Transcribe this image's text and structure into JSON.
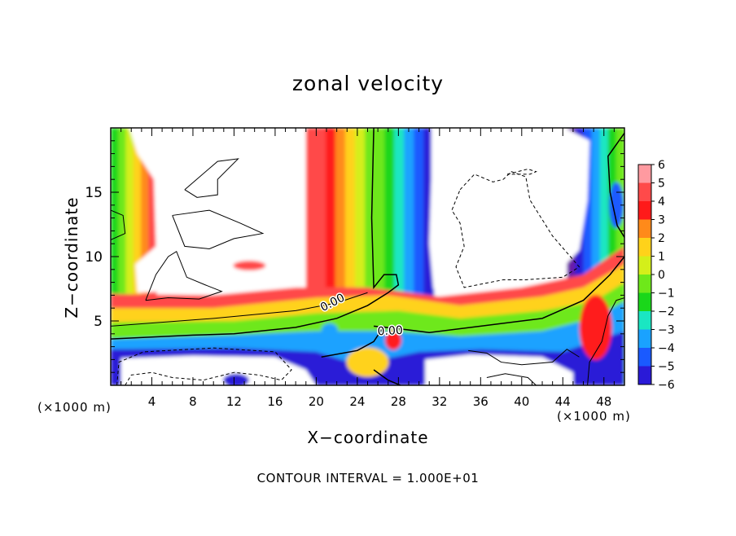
{
  "chart_data": {
    "type": "heatmap",
    "title": "zonal velocity",
    "xlabel": "X−coordinate",
    "ylabel": "Z−coordinate",
    "x_unit_left": "(×1000 m)",
    "x_unit_right": "(×1000 m)",
    "xlim": [
      0,
      50
    ],
    "ylim": [
      0,
      20
    ],
    "xticks": [
      4,
      8,
      12,
      16,
      20,
      24,
      28,
      32,
      36,
      40,
      44,
      48
    ],
    "yticks": [
      5,
      10,
      15
    ],
    "colorbar": {
      "levels": [
        6,
        5,
        4,
        3,
        2,
        1,
        0,
        -1,
        -2,
        -3,
        -4,
        -5,
        -6
      ],
      "colors": [
        "#ff9aa0",
        "#ff4a4a",
        "#ff1a1a",
        "#ff8a1a",
        "#ffd21a",
        "#d4ef1a",
        "#6ee81a",
        "#1ad71a",
        "#1ae6c2",
        "#1aa2ff",
        "#1a5aff",
        "#2a1ad7",
        "#6a1aa8"
      ],
      "labels": [
        "6",
        "5",
        "4",
        "3",
        "2",
        "1",
        "0",
        "−1",
        "−2",
        "−3",
        "−4",
        "−5",
        "−6"
      ]
    },
    "contour_labels": [
      "0.00",
      "0.00"
    ],
    "contour_interval": "CONTOUR INTERVAL = 1.000E+01"
  }
}
